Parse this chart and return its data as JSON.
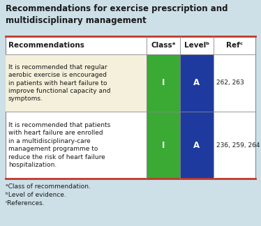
{
  "title_line1": "Recommendations for exercise prescription and",
  "title_line2": "multidisciplinary management",
  "title_fontsize": 8.5,
  "title_color": "#1a1a1a",
  "background_color": "#cde0e8",
  "table_bg": "#ffffff",
  "header_bg": "#ffffff",
  "row1_rec_bg": "#f5f0dc",
  "row2_rec_bg": "#ffffff",
  "green_color": "#3aaa35",
  "blue_color": "#1f3a9e",
  "border_color": "#c0392b",
  "inner_border_color": "#888888",
  "col_headers": [
    "Recommendations",
    "Classᵃ",
    "Levelᵇ",
    "Refᶜ"
  ],
  "row1_rec": "It is recommended that regular\naerobic exercise is encouraged\nin patients with heart failure to\nimprove functional capacity and\nsymptoms.",
  "row2_rec": "It is recommended that patients\nwith heart failure are enrolled\nin a multidisciplinary-care\nmanagement programme to\nreduce the risk of heart failure\nhospitalization.",
  "row1_class": "I",
  "row1_level": "A",
  "row1_ref": "262, 263",
  "row2_class": "I",
  "row2_level": "A",
  "row2_ref": "236, 259, 264",
  "footnote1": "ᵃClass of recommendation.",
  "footnote2": "ᵇLevel of evidence.",
  "footnote3": "ᶜReferences.",
  "footnote_fontsize": 6.5,
  "cell_text_fontsize": 6.5,
  "header_fontsize": 7.5
}
